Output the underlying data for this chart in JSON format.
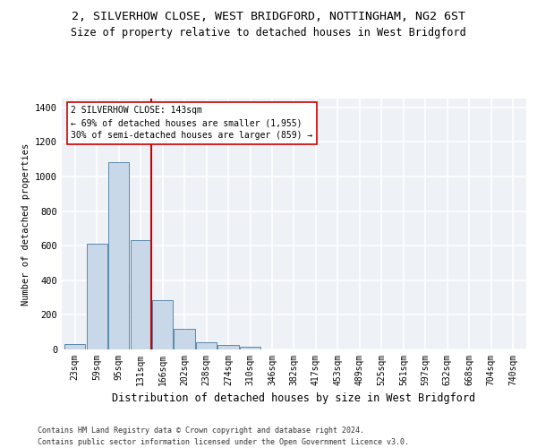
{
  "title": "2, SILVERHOW CLOSE, WEST BRIDGFORD, NOTTINGHAM, NG2 6ST",
  "subtitle": "Size of property relative to detached houses in West Bridgford",
  "xlabel": "Distribution of detached houses by size in West Bridgford",
  "ylabel": "Number of detached properties",
  "footnote1": "Contains HM Land Registry data © Crown copyright and database right 2024.",
  "footnote2": "Contains public sector information licensed under the Open Government Licence v3.0.",
  "categories": [
    "23sqm",
    "59sqm",
    "95sqm",
    "131sqm",
    "166sqm",
    "202sqm",
    "238sqm",
    "274sqm",
    "310sqm",
    "346sqm",
    "382sqm",
    "417sqm",
    "453sqm",
    "489sqm",
    "525sqm",
    "561sqm",
    "597sqm",
    "632sqm",
    "668sqm",
    "704sqm",
    "740sqm"
  ],
  "values": [
    30,
    610,
    1080,
    630,
    285,
    120,
    40,
    25,
    15,
    0,
    0,
    0,
    0,
    0,
    0,
    0,
    0,
    0,
    0,
    0,
    0
  ],
  "bar_color": "#c8d8e8",
  "bar_edge_color": "#5a8aaa",
  "annotation_text": "2 SILVERHOW CLOSE: 143sqm\n← 69% of detached houses are smaller (1,955)\n30% of semi-detached houses are larger (859) →",
  "vline_x": 3.5,
  "vline_color": "#cc0000",
  "annotation_box_color": "#ffffff",
  "annotation_box_edge_color": "#cc0000",
  "ylim": [
    0,
    1450
  ],
  "yticks": [
    0,
    200,
    400,
    600,
    800,
    1000,
    1200,
    1400
  ],
  "bg_color": "#eef2f7",
  "grid_color": "#ffffff",
  "title_fontsize": 9.5,
  "subtitle_fontsize": 8.5,
  "tick_fontsize": 7,
  "ylabel_fontsize": 7.5,
  "xlabel_fontsize": 8.5,
  "footnote_fontsize": 6.0,
  "annotation_fontsize": 7.0
}
